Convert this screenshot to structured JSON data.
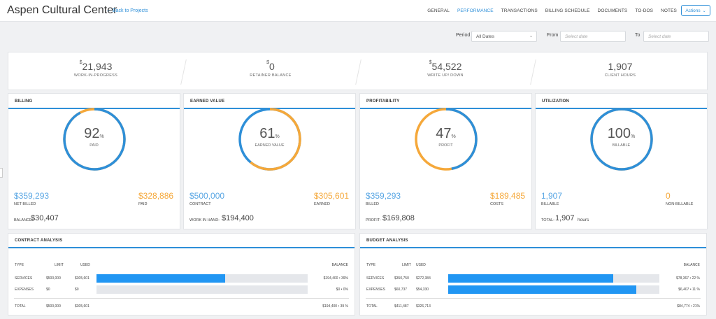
{
  "header": {
    "title": "Aspen Cultural Center",
    "back_link": "Back to Projects",
    "tabs": [
      "GENERAL",
      "PERFORMANCE",
      "TRANSACTIONS",
      "BILLING SCHEDULE",
      "DOCUMENTS",
      "TO-DOS",
      "NOTES"
    ],
    "active_tab": "PERFORMANCE",
    "actions_label": "Actions"
  },
  "filter": {
    "period_label": "Period",
    "period_value": "All Dates",
    "from_label": "From",
    "from_placeholder": "Select date",
    "to_label": "To",
    "to_placeholder": "Select date"
  },
  "stats": [
    {
      "prefix": "$",
      "value": "21,943",
      "label": "WORK-IN-PROGRESS"
    },
    {
      "prefix": "$",
      "value": "0",
      "label": "RETAINER BALANCE"
    },
    {
      "prefix": "$",
      "value": "54,522",
      "label": "WRITE UP/ DOWN"
    },
    {
      "prefix": "",
      "value": "1,907",
      "label": "CLIENT HOURS"
    }
  ],
  "cards": [
    {
      "title": "BILLING",
      "percent": "92",
      "percent_sign": "%",
      "percent_value": 92,
      "center_label": "PAID",
      "arc_color": "#2e8fd8",
      "ring_color": "#f5a83a",
      "left_value": "$359,293",
      "left_label": "NET BILLED",
      "right_value": "$328,886",
      "right_label": "PAID",
      "bottom_label": "BALANCE:",
      "bottom_value": "$30,407",
      "bottom_unit": ""
    },
    {
      "title": "EARNED VALUE",
      "percent": "61",
      "percent_sign": "%",
      "percent_value": 61,
      "center_label": "EARNED VALUE",
      "arc_color": "#f5a83a",
      "ring_color": "#2e8fd8",
      "left_value": "$500,000",
      "left_label": "CONTRACT",
      "right_value": "$305,601",
      "right_label": "EARNED",
      "bottom_label": "WORK IN HAND:",
      "bottom_value": "$194,400",
      "bottom_unit": ""
    },
    {
      "title": "PROFITABILITY",
      "percent": "47",
      "percent_sign": "%",
      "percent_value": 47,
      "center_label": "PROFIT",
      "arc_color": "#2e8fd8",
      "ring_color": "#f5a83a",
      "left_value": "$359,293",
      "left_label": "BILLED",
      "right_value": "$189,485",
      "right_label": "COSTS",
      "bottom_label": "PROFIT:",
      "bottom_value": "$169,808",
      "bottom_unit": ""
    },
    {
      "title": "UTILIZATION",
      "percent": "100",
      "percent_sign": "%",
      "percent_value": 100,
      "center_label": "BILLABLE",
      "arc_color": "#2e8fd8",
      "ring_color": "#f5a83a",
      "left_value": "1,907",
      "left_label": "BILLABLE",
      "right_value": "0",
      "right_label": "NON-BILLABLE",
      "bottom_label": "TOTAL:",
      "bottom_value": "1,907",
      "bottom_unit": "hours"
    }
  ],
  "contract_analysis": {
    "title": "CONTRACT ANALYSIS",
    "headers": {
      "type": "TYPE",
      "limit": "LIMIT",
      "used": "USED",
      "balance": "BALANCE"
    },
    "rows": [
      {
        "type": "SERVICES",
        "limit": "$500,000",
        "used": "$305,601",
        "fill": 0.61,
        "balance": "$194,400 • 39%"
      },
      {
        "type": "EXPENSES",
        "limit": "$0",
        "used": "$0",
        "fill": 0,
        "balance": "$0 • 0%"
      }
    ],
    "total": {
      "type": "TOTAL",
      "limit": "$500,000",
      "used": "$305,601",
      "balance": "$194,400 • 39 %"
    }
  },
  "budget_analysis": {
    "title": "BUDGET ANALYSIS",
    "headers": {
      "type": "TYPE",
      "limit": "LIMIT",
      "used": "USED",
      "balance": "BALANCE"
    },
    "rows": [
      {
        "type": "SERVICES",
        "limit": "$350,750",
        "used": "$272,384",
        "fill": 0.78,
        "balance": "$78,367 • 22 %"
      },
      {
        "type": "EXPENSES",
        "limit": "$60,737",
        "used": "$54,330",
        "fill": 0.89,
        "balance": "$6,407 • 11 %"
      }
    ],
    "total": {
      "type": "TOTAL",
      "limit": "$411,487",
      "used": "$326,713",
      "balance": "$84,774 • 21%"
    }
  },
  "colors": {
    "accent": "#2e8fd8",
    "orange": "#f5a83a",
    "bar": "#2196f3"
  }
}
